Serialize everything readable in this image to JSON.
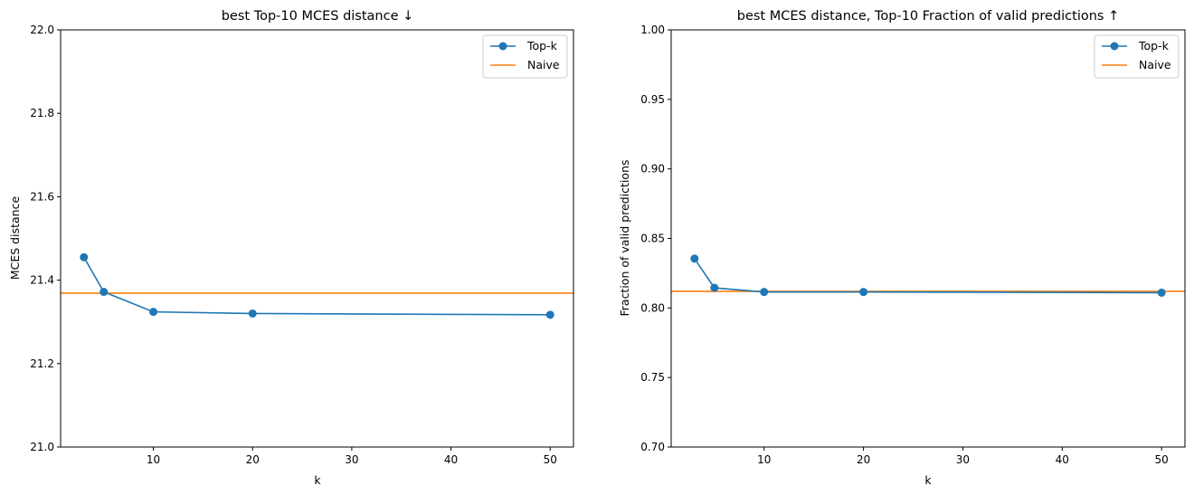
{
  "chart_data": [
    {
      "type": "line",
      "title": "best Top-10 MCES distance ↓",
      "xlabel": "k",
      "ylabel": "MCES distance",
      "xlim": [
        0.65,
        52.35
      ],
      "ylim": [
        21.0,
        22.0
      ],
      "xticks": [
        10,
        20,
        30,
        40,
        50
      ],
      "xtick_labels": [
        "10",
        "20",
        "30",
        "40",
        "50"
      ],
      "yticks": [
        21.0,
        21.2,
        21.4,
        21.6,
        21.8,
        22.0
      ],
      "ytick_labels": [
        "21.0",
        "21.2",
        "21.4",
        "21.6",
        "21.8",
        "22.0"
      ],
      "grid": false,
      "legend_position": "top-right",
      "series": [
        {
          "name": "Top-k",
          "kind": "line-marker",
          "color": "#1f77b4",
          "x": [
            3,
            5,
            10,
            20,
            50
          ],
          "y": [
            21.455,
            21.372,
            21.324,
            21.32,
            21.317
          ]
        },
        {
          "name": "Naive",
          "kind": "hline",
          "color": "#ff7f0e",
          "y": 21.369
        }
      ]
    },
    {
      "type": "line",
      "title": "best MCES distance, Top-10 Fraction of valid predictions ↑",
      "xlabel": "k",
      "ylabel": "Fraction of valid predictions",
      "xlim": [
        0.65,
        52.35
      ],
      "ylim": [
        0.7,
        1.0
      ],
      "xticks": [
        10,
        20,
        30,
        40,
        50
      ],
      "xtick_labels": [
        "10",
        "20",
        "30",
        "40",
        "50"
      ],
      "yticks": [
        0.7,
        0.75,
        0.8,
        0.85,
        0.9,
        0.95,
        1.0
      ],
      "ytick_labels": [
        "0.70",
        "0.75",
        "0.80",
        "0.85",
        "0.90",
        "0.95",
        "1.00"
      ],
      "grid": false,
      "legend_position": "top-right",
      "series": [
        {
          "name": "Top-k",
          "kind": "line-marker",
          "color": "#1f77b4",
          "x": [
            3,
            5,
            10,
            20,
            50
          ],
          "y": [
            0.8355,
            0.8145,
            0.8115,
            0.8115,
            0.811
          ]
        },
        {
          "name": "Naive",
          "kind": "hline",
          "color": "#ff7f0e",
          "y": 0.812
        }
      ]
    }
  ]
}
